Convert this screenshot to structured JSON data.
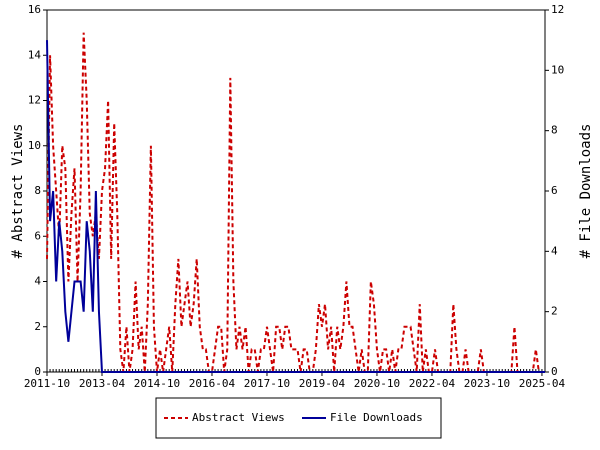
{
  "chart_data": {
    "type": "line",
    "y_label": "# Abstract Views",
    "y2_label": "# File Downloads",
    "x": [
      "2011-10",
      "2011-11",
      "2011-12",
      "2012-01",
      "2012-02",
      "2012-03",
      "2012-04",
      "2012-05",
      "2012-06",
      "2012-07",
      "2012-08",
      "2012-09",
      "2012-10",
      "2012-11",
      "2012-12",
      "2013-01",
      "2013-02",
      "2013-03",
      "2013-04",
      "2013-05",
      "2013-06",
      "2013-07",
      "2013-08",
      "2013-09",
      "2013-10",
      "2013-11",
      "2013-12",
      "2014-01",
      "2014-02",
      "2014-03",
      "2014-04",
      "2014-05",
      "2014-06",
      "2014-07",
      "2014-08",
      "2014-09",
      "2014-10",
      "2014-11",
      "2014-12",
      "2015-01",
      "2015-02",
      "2015-03",
      "2015-04",
      "2015-05",
      "2015-06",
      "2015-07",
      "2015-08",
      "2015-09",
      "2015-10",
      "2015-11",
      "2015-12",
      "2016-01",
      "2016-02",
      "2016-03",
      "2016-04",
      "2016-05",
      "2016-06",
      "2016-07",
      "2016-08",
      "2016-09",
      "2016-10",
      "2016-11",
      "2016-12",
      "2017-01",
      "2017-02",
      "2017-03",
      "2017-04",
      "2017-05",
      "2017-06",
      "2017-07",
      "2017-08",
      "2017-09",
      "2017-10",
      "2017-11",
      "2017-12",
      "2018-01",
      "2018-02",
      "2018-03",
      "2018-04",
      "2018-05",
      "2018-06",
      "2018-07",
      "2018-08",
      "2018-09",
      "2018-10",
      "2018-11",
      "2018-12",
      "2019-01",
      "2019-02",
      "2019-03",
      "2019-04",
      "2019-05",
      "2019-06",
      "2019-07",
      "2019-08",
      "2019-09",
      "2019-10",
      "2019-11",
      "2019-12",
      "2020-01",
      "2020-02",
      "2020-03",
      "2020-04",
      "2020-05",
      "2020-06",
      "2020-07",
      "2020-08",
      "2020-09",
      "2020-10",
      "2020-11",
      "2020-12",
      "2021-01",
      "2021-02",
      "2021-03",
      "2021-04",
      "2021-05",
      "2021-06",
      "2021-07",
      "2021-08",
      "2021-09",
      "2021-10",
      "2021-11",
      "2021-12",
      "2022-01",
      "2022-02",
      "2022-03",
      "2022-04",
      "2022-05",
      "2022-06",
      "2022-07",
      "2022-08",
      "2022-09",
      "2022-10",
      "2022-11",
      "2022-12",
      "2023-01",
      "2023-02",
      "2023-03",
      "2023-04",
      "2023-05",
      "2023-06",
      "2023-07",
      "2023-08",
      "2023-09",
      "2023-10",
      "2023-11",
      "2023-12",
      "2024-01",
      "2024-02",
      "2024-03",
      "2024-04",
      "2024-05",
      "2024-06",
      "2024-07",
      "2024-08",
      "2024-09",
      "2024-10",
      "2024-11",
      "2024-12",
      "2025-01",
      "2025-02",
      "2025-03",
      "2025-04",
      "2025-05"
    ],
    "xticks": [
      "2011-10",
      "2013-04",
      "2014-10",
      "2016-04",
      "2017-10",
      "2019-04",
      "2020-10",
      "2022-04",
      "2023-10",
      "2025-04"
    ],
    "ylim": [
      0,
      16
    ],
    "yticks": [
      0,
      2,
      4,
      6,
      8,
      10,
      12,
      14,
      16
    ],
    "y2lim": [
      0,
      12
    ],
    "y2ticks": [
      0,
      2,
      4,
      6,
      8,
      10,
      12
    ],
    "series": [
      {
        "name": "Abstract Views",
        "color": "#cc0000",
        "style": "dashed",
        "values": [
          5,
          14,
          10,
          8,
          6,
          10,
          9,
          4,
          7,
          9,
          4,
          8,
          15,
          12,
          7,
          6,
          7,
          5,
          8,
          9,
          12,
          5,
          11,
          7,
          1,
          0,
          2,
          0,
          1,
          4,
          1,
          2,
          0,
          3,
          10,
          2,
          0,
          1,
          0,
          1,
          2,
          0,
          3,
          5,
          2,
          3,
          4,
          2,
          3,
          5,
          2,
          1,
          1,
          0,
          0,
          1,
          2,
          2,
          0,
          1,
          13,
          4,
          1,
          2,
          1,
          2,
          0,
          1,
          1,
          0,
          1,
          1,
          2,
          1,
          0,
          2,
          2,
          1,
          2,
          2,
          1,
          1,
          1,
          0,
          1,
          1,
          0,
          0,
          1,
          3,
          2,
          3,
          1,
          2,
          0,
          2,
          1,
          2,
          4,
          2,
          2,
          1,
          0,
          1,
          0,
          0,
          4,
          3,
          1,
          0,
          1,
          1,
          0,
          1,
          0,
          1,
          1,
          2,
          2,
          2,
          1,
          0,
          3,
          0,
          1,
          0,
          0,
          1,
          0,
          0,
          0,
          0,
          0,
          3,
          1,
          0,
          0,
          1,
          0,
          0,
          0,
          0,
          1,
          0,
          0,
          0,
          0,
          0,
          0,
          0,
          0,
          0,
          0,
          2,
          0,
          0,
          0,
          0,
          0,
          0,
          1,
          0,
          0,
          0
        ]
      },
      {
        "name": "File Downloads",
        "color": "#000099",
        "style": "solid",
        "axis": "y2",
        "values": [
          11,
          5,
          6,
          3,
          5,
          4,
          2,
          1,
          2,
          3,
          3,
          3,
          2,
          5,
          4,
          2,
          6,
          2,
          0,
          0,
          0,
          0,
          0,
          0,
          0,
          0,
          0,
          0,
          0,
          0,
          0,
          0,
          0,
          0,
          0,
          0,
          0,
          0,
          0,
          0,
          0,
          0,
          0,
          0,
          0,
          0,
          0,
          0,
          0,
          0,
          0,
          0,
          0,
          0,
          0,
          0,
          0,
          0,
          0,
          0,
          0,
          0,
          0,
          0,
          0,
          0,
          0,
          0,
          0,
          0,
          0,
          0,
          0,
          0,
          0,
          0,
          0,
          0,
          0,
          0,
          0,
          0,
          0,
          0,
          0,
          0,
          0,
          0,
          0,
          0,
          0,
          0,
          0,
          0,
          0,
          0,
          0,
          0,
          0,
          0,
          0,
          0,
          0,
          0,
          0,
          0,
          0,
          0,
          0,
          0,
          0,
          0,
          0,
          0,
          0,
          0,
          0,
          0,
          0,
          0,
          0,
          0,
          0,
          0,
          0,
          0,
          0,
          0,
          0,
          0,
          0,
          0,
          0,
          0,
          0,
          0,
          0,
          0,
          0,
          0,
          0,
          0,
          0,
          0,
          0,
          0,
          0,
          0,
          0,
          0,
          0,
          0,
          0,
          0,
          0,
          0,
          0,
          0,
          0,
          0,
          0,
          0,
          0,
          0
        ]
      }
    ]
  }
}
